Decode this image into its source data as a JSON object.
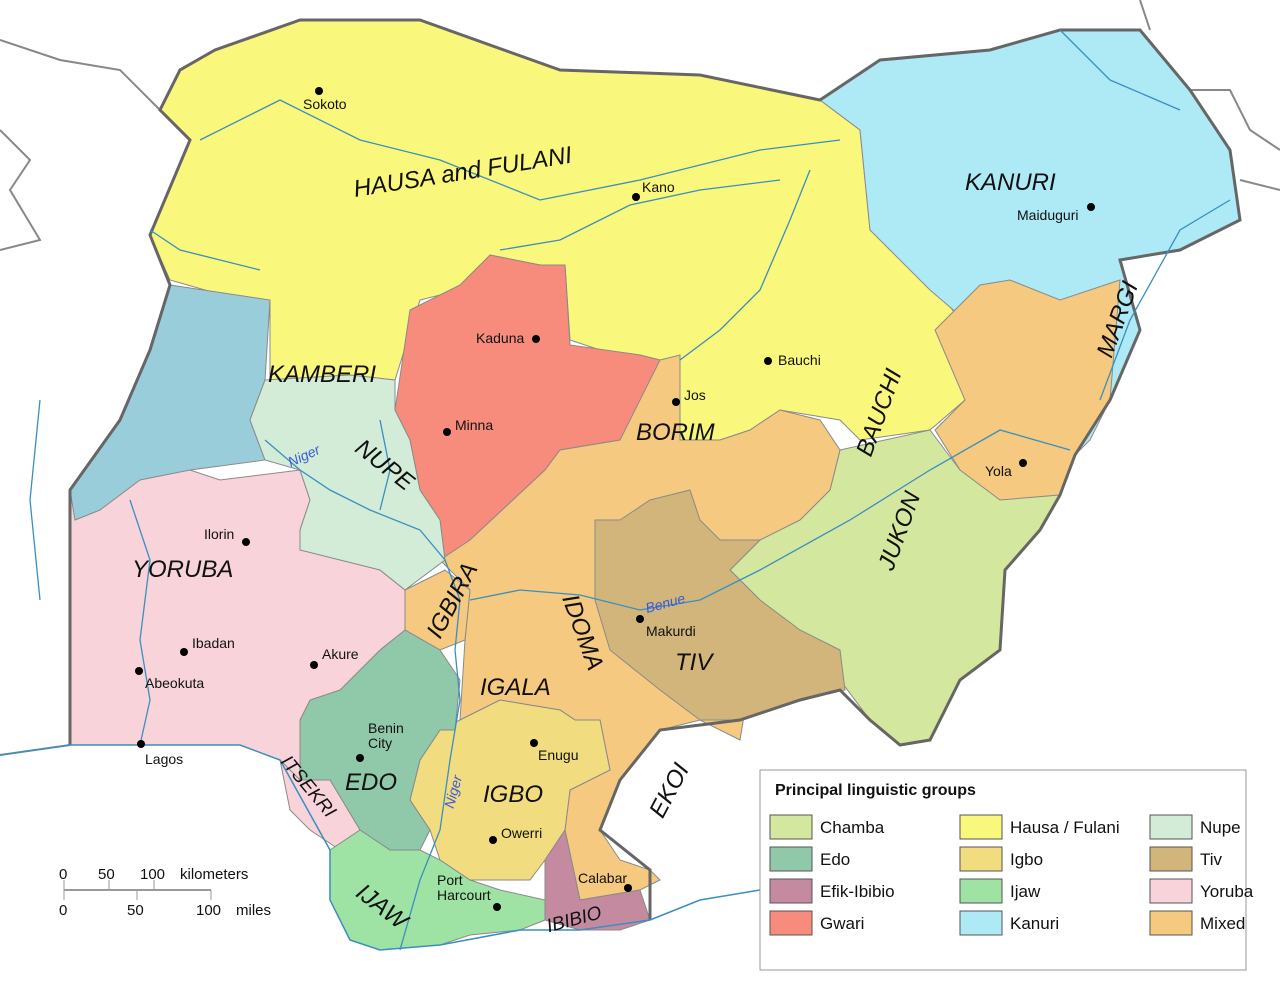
{
  "colors": {
    "chamba": "#d4e79e",
    "edo": "#8fc9aa",
    "efik_ibibio": "#c48ba0",
    "gwari": "#f78c7c",
    "hausa_fulani": "#f9f77c",
    "igbo": "#f2dc80",
    "ijaw": "#9ee3a4",
    "kanuri": "#aee9f6",
    "nupe": "#d2ecd7",
    "tiv": "#d2b57a",
    "yoruba": "#f9d3da",
    "mixed": "#f5c97f",
    "borgu": "#99cdd9",
    "border": "#666666",
    "river": "#3a8fc0"
  },
  "group_labels": {
    "hausa": "HAUSA and FULANI",
    "kanuri": "KANURI",
    "margi": "MARGI",
    "kamberi": "KAMBERI",
    "nupe": "NUPE",
    "borim": "BORIM",
    "bauchi": "BAUCHI",
    "jukon": "JUKON",
    "yoruba": "YORUBA",
    "igbira": "IGBIRA",
    "idoma": "IDOMA",
    "tiv": "TIV",
    "igala": "IGALA",
    "edo": "EDO",
    "igbo": "IGBO",
    "ekoi": "EKOI",
    "itsekiri": "ITSEKRI",
    "ijaw": "IJAW",
    "ibibio": "IBIBIO"
  },
  "cities": {
    "sokoto": "Sokoto",
    "kano": "Kano",
    "maiduguri": "Maiduguri",
    "kaduna": "Kaduna",
    "bauchi": "Bauchi",
    "jos": "Jos",
    "minna": "Minna",
    "yola": "Yola",
    "ilorin": "Ilorin",
    "ibadan": "Ibadan",
    "akure": "Akure",
    "abeokuta": "Abeokuta",
    "lagos": "Lagos",
    "makurdi": "Makurdi",
    "benin_1": "Benin",
    "benin_2": "City",
    "enugu": "Enugu",
    "owerri": "Owerri",
    "port_1": "Port",
    "port_2": "Harcourt",
    "calabar": "Calabar"
  },
  "rivers": {
    "niger": "Niger",
    "benue": "Benue",
    "niger_delta": "Niger"
  },
  "legend": {
    "title": "Principal linguistic groups",
    "items": [
      {
        "label": "Chamba",
        "color": "#d4e79e"
      },
      {
        "label": "Edo",
        "color": "#8fc9aa"
      },
      {
        "label": "Efik-Ibibio",
        "color": "#c48ba0"
      },
      {
        "label": "Gwari",
        "color": "#f78c7c"
      },
      {
        "label": "Hausa / Fulani",
        "color": "#f9f77c"
      },
      {
        "label": "Igbo",
        "color": "#f2dc80"
      },
      {
        "label": "Ijaw",
        "color": "#9ee3a4"
      },
      {
        "label": "Kanuri",
        "color": "#aee9f6"
      },
      {
        "label": "Nupe",
        "color": "#d2ecd7"
      },
      {
        "label": "Tiv",
        "color": "#d2b57a"
      },
      {
        "label": "Yoruba",
        "color": "#f9d3da"
      },
      {
        "label": "Mixed",
        "color": "#f5c97f"
      }
    ]
  },
  "scale": {
    "km_ticks": [
      "0",
      "50",
      "100"
    ],
    "km_unit": "kilometers",
    "mi_ticks": [
      "0",
      "50",
      "100"
    ],
    "mi_unit": "miles"
  }
}
